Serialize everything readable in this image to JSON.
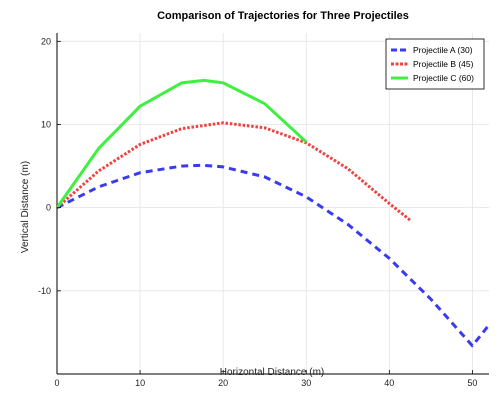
{
  "chart_data": {
    "type": "line",
    "title": "Comparison of Trajectories for Three Projectiles",
    "xlabel": "Horizontal Distance (m)",
    "ylabel": "Vertical Distance (m)",
    "xlim": [
      0,
      52
    ],
    "ylim": [
      -20,
      21
    ],
    "xticks": [
      0,
      10,
      20,
      30,
      40,
      50
    ],
    "yticks": [
      -10,
      0,
      10,
      20
    ],
    "xtick_labels": [
      "0",
      "10",
      "20",
      "30",
      "40",
      "50"
    ],
    "ytick_labels": [
      "-10",
      "0",
      "10",
      "20"
    ],
    "grid": true,
    "legend_position": "top-right",
    "series": [
      {
        "name": "Projectile A (30)",
        "color": "#3a3af0",
        "style": "dashed",
        "x": [
          0,
          5,
          10,
          15,
          17.5,
          20,
          25,
          30,
          35,
          40,
          45,
          50,
          52
        ],
        "y": [
          0,
          2.5,
          4.2,
          5.0,
          5.1,
          4.9,
          3.7,
          1.3,
          -2.0,
          -6.1,
          -11.0,
          -16.6,
          -14.1
        ]
      },
      {
        "name": "Projectile B (45)",
        "color": "#f04040",
        "style": "dotted",
        "x": [
          0,
          5,
          10,
          15,
          20,
          25,
          30,
          35,
          40,
          42.5
        ],
        "y": [
          0,
          4.4,
          7.6,
          9.5,
          10.2,
          9.6,
          7.8,
          4.7,
          0.5,
          -1.5
        ]
      },
      {
        "name": "Projectile C (60)",
        "color": "#40f040",
        "style": "solid",
        "x": [
          0,
          5,
          10,
          15,
          17.7,
          20,
          25,
          30
        ],
        "y": [
          0,
          7.1,
          12.2,
          15.0,
          15.3,
          15.0,
          12.5,
          7.9
        ]
      }
    ]
  }
}
